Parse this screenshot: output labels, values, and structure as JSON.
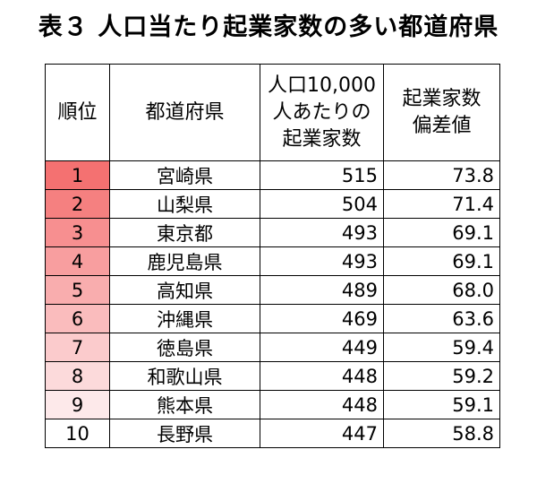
{
  "title": "表３ 人口当たり起業家数の多い都道府県",
  "headers": {
    "rank": "順位",
    "prefecture": "都道府県",
    "count_line1": "人口10,000",
    "count_line2": "人あたりの",
    "count_line3": "起業家数",
    "deviation_line1": "起業家数",
    "deviation_line2": "偏差値"
  },
  "rows": [
    {
      "rank": "1",
      "prefecture": "宮崎県",
      "count": "515",
      "deviation": "73.8",
      "color": "#f47171"
    },
    {
      "rank": "2",
      "prefecture": "山梨県",
      "count": "504",
      "deviation": "71.4",
      "color": "#f58080"
    },
    {
      "rank": "3",
      "prefecture": "東京都",
      "count": "493",
      "deviation": "69.1",
      "color": "#f78f90"
    },
    {
      "rank": "4",
      "prefecture": "鹿児島県",
      "count": "493",
      "deviation": "69.1",
      "color": "#f89e9f"
    },
    {
      "rank": "5",
      "prefecture": "高知県",
      "count": "489",
      "deviation": "68.0",
      "color": "#f9adae"
    },
    {
      "rank": "6",
      "prefecture": "沖縄県",
      "count": "469",
      "deviation": "63.6",
      "color": "#fabcbd"
    },
    {
      "rank": "7",
      "prefecture": "徳島県",
      "count": "449",
      "deviation": "59.4",
      "color": "#fbcbcc"
    },
    {
      "rank": "8",
      "prefecture": "和歌山県",
      "count": "448",
      "deviation": "59.2",
      "color": "#fcdadb"
    },
    {
      "rank": "9",
      "prefecture": "熊本県",
      "count": "448",
      "deviation": "59.1",
      "color": "#fde9ea"
    },
    {
      "rank": "10",
      "prefecture": "長野県",
      "count": "447",
      "deviation": "58.8",
      "color": "#ffffff"
    }
  ]
}
